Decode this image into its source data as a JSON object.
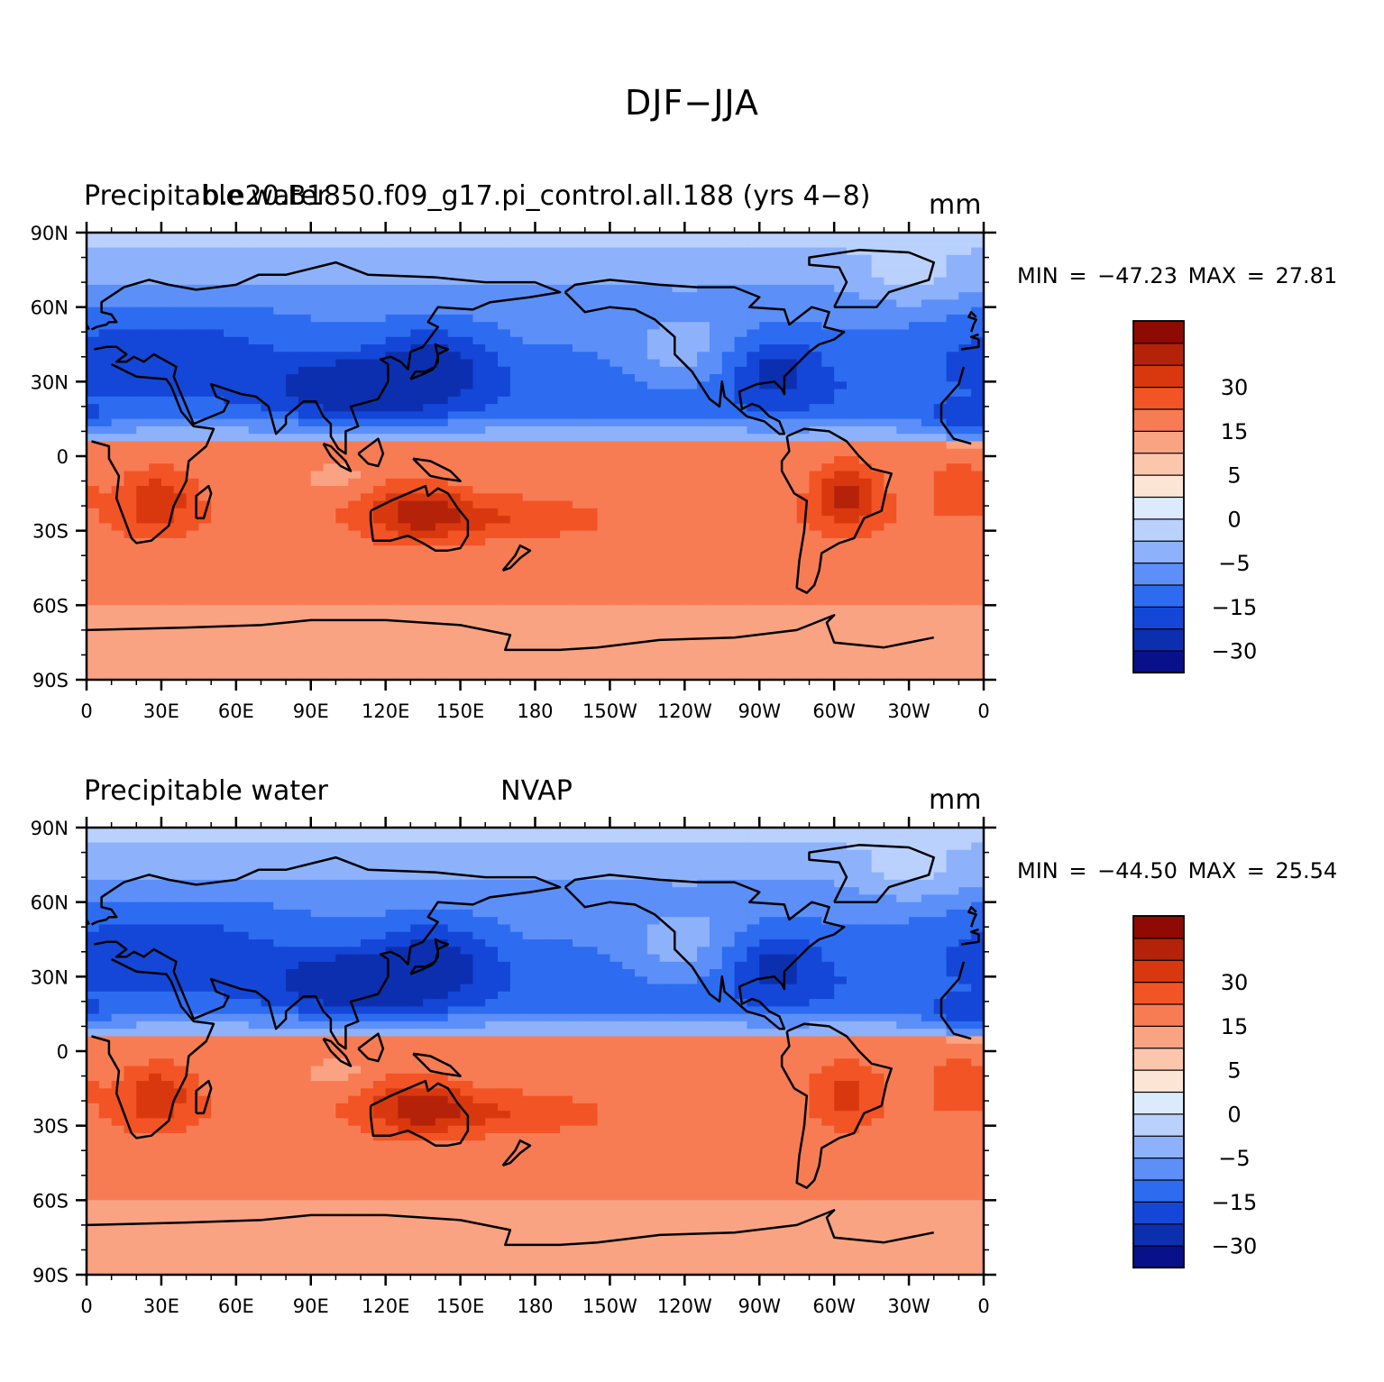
{
  "title": "DJF−JJA",
  "colors": {
    "palette": [
      "#08108a",
      "#0c2fb0",
      "#1447d8",
      "#2d6cf0",
      "#5c8ff8",
      "#8db2fb",
      "#b9d1fc",
      "#dbebfd",
      "#fde5d6",
      "#fcc6ad",
      "#f9a383",
      "#f77c54",
      "#f25425",
      "#d9380e",
      "#b5220a",
      "#8e0a02"
    ],
    "coast": "#000000"
  },
  "panels": [
    {
      "left_title": "Precipitable water",
      "center_title": "b.e20.B1850.f09_g17.pi_control.all.188 (yrs 4−8)",
      "units": "mm",
      "min_label": "MIN = −47.23",
      "max_label": "MAX =  27.81",
      "min": -47.23,
      "max": 27.81
    },
    {
      "left_title": "Precipitable water",
      "center_title": "NVAP",
      "units": "mm",
      "min_label": "MIN = −44.50",
      "max_label": "MAX =  25.54",
      "min": -44.5,
      "max": 25.54
    }
  ],
  "axes": {
    "y_ticks": [
      "90N",
      "60N",
      "30N",
      "0",
      "30S",
      "60S",
      "90S"
    ],
    "x_ticks": [
      "0",
      "30E",
      "60E",
      "90E",
      "120E",
      "150E",
      "180",
      "150W",
      "120W",
      "90W",
      "60W",
      "30W",
      "0"
    ]
  },
  "colorbar": {
    "labels": [
      "30",
      "15",
      "5",
      "0",
      "−5",
      "−15",
      "−30"
    ]
  }
}
